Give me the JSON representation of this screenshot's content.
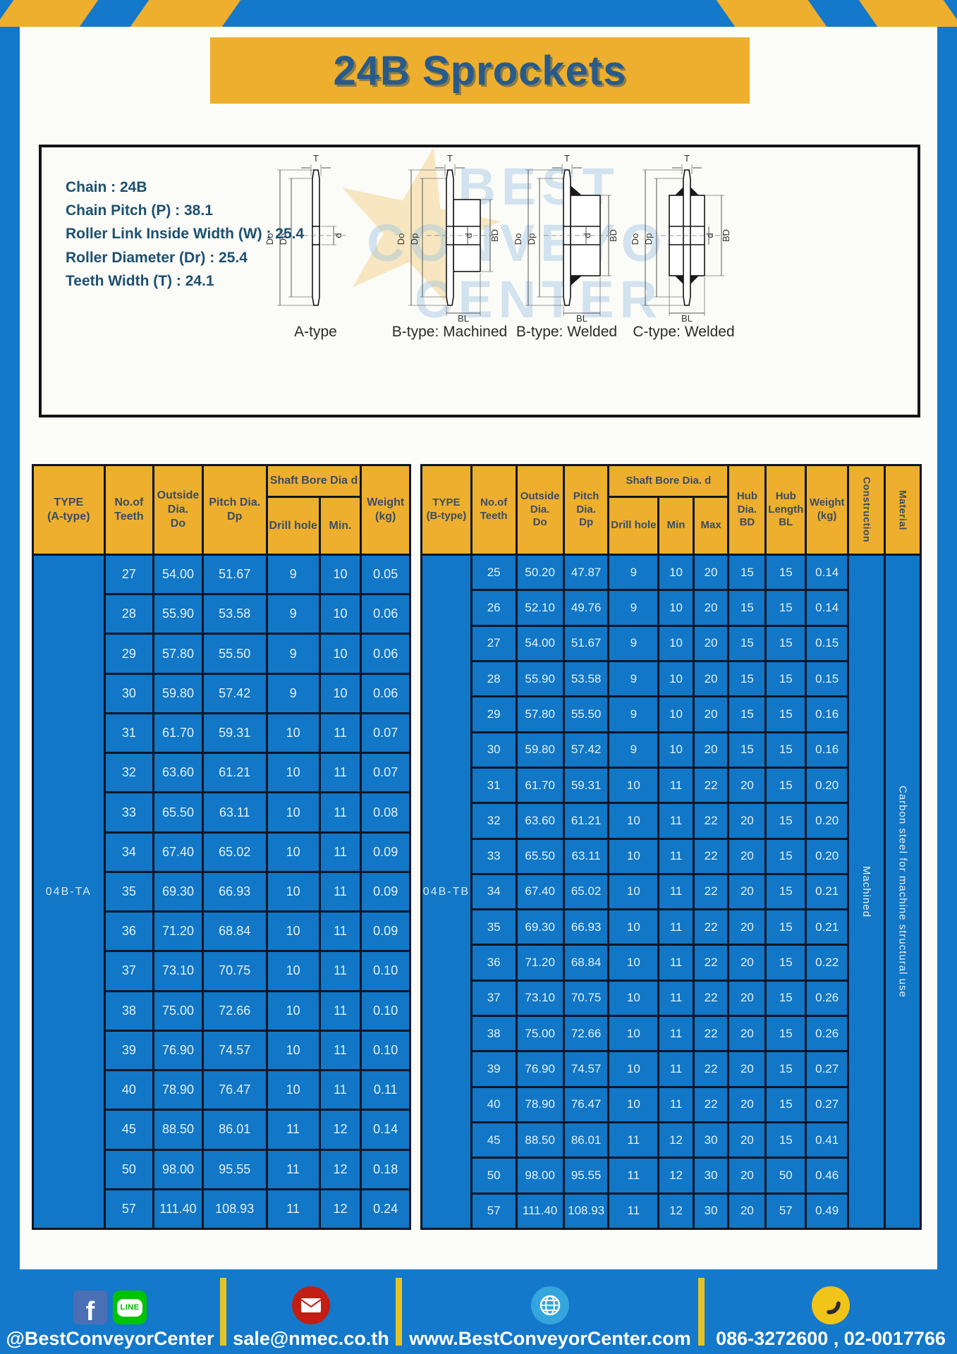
{
  "page": {
    "title": "24B Sprockets"
  },
  "colors": {
    "frame_blue": "#1478CB",
    "gold": "#EDAF2D",
    "table_body_blue": "#1177C6",
    "border_navy": "#0D1628",
    "title_navy": "#285A8C",
    "spec_text": "#1C5071"
  },
  "specs": {
    "lines": [
      "Chain  : 24B",
      "Chain Pitch (P)  :  38.1",
      "Roller Link Inside Width (W)  :  25.4",
      "Roller Diameter (Dr)  : 25.4",
      "Teeth Width (T)  :  24.1"
    ]
  },
  "diagram": {
    "labels": [
      "A-type",
      "B-type: Machined",
      "B-type: Welded",
      "C-type: Welded"
    ],
    "dims": {
      "t": "T",
      "dout": "Do",
      "dp": "Dp",
      "d": "d",
      "bd": "BD",
      "bl": "BL"
    },
    "watermark": {
      "lines": [
        "BEST",
        "CONVEYOR",
        "CENTER"
      ],
      "star": "★"
    }
  },
  "tables": {
    "left": {
      "headers": {
        "type": "TYPE\n(A-type)",
        "teeth": "No.of\nTeeth",
        "outside": "Outside\nDia.\nDo",
        "pitch": "Pitch Dia.\nDp",
        "shaft_bore": "Shaft Bore Dia d",
        "drill": "Drill hole",
        "min": "Min.",
        "weight": "Weight\n(kg)"
      },
      "merged": {
        "start": [
          {
            "value": "04B-TA",
            "name": "type-cell",
            "class": "type-cell"
          }
        ],
        "end": []
      },
      "rows": [
        [
          "27",
          "54.00",
          "51.67",
          "9",
          "10",
          "0.05"
        ],
        [
          "28",
          "55.90",
          "53.58",
          "9",
          "10",
          "0.06"
        ],
        [
          "29",
          "57.80",
          "55.50",
          "9",
          "10",
          "0.06"
        ],
        [
          "30",
          "59.80",
          "57.42",
          "9",
          "10",
          "0.06"
        ],
        [
          "31",
          "61.70",
          "59.31",
          "10",
          "11",
          "0.07"
        ],
        [
          "32",
          "63.60",
          "61.21",
          "10",
          "11",
          "0.07"
        ],
        [
          "33",
          "65.50",
          "63.11",
          "10",
          "11",
          "0.08"
        ],
        [
          "34",
          "67.40",
          "65.02",
          "10",
          "11",
          "0.09"
        ],
        [
          "35",
          "69.30",
          "66.93",
          "10",
          "11",
          "0.09"
        ],
        [
          "36",
          "71.20",
          "68.84",
          "10",
          "11",
          "0.09"
        ],
        [
          "37",
          "73.10",
          "70.75",
          "10",
          "11",
          "0.10"
        ],
        [
          "38",
          "75.00",
          "72.66",
          "10",
          "11",
          "0.10"
        ],
        [
          "39",
          "76.90",
          "74.57",
          "10",
          "11",
          "0.10"
        ],
        [
          "40",
          "78.90",
          "76.47",
          "10",
          "11",
          "0.11"
        ],
        [
          "45",
          "88.50",
          "86.01",
          "11",
          "12",
          "0.14"
        ],
        [
          "50",
          "98.00",
          "95.55",
          "11",
          "12",
          "0.18"
        ],
        [
          "57",
          "111.40",
          "108.93",
          "11",
          "12",
          "0.24"
        ]
      ]
    },
    "right": {
      "headers": {
        "type": "TYPE\n(B-type)",
        "teeth": "No.of\nTeeth",
        "outside": "Outside\nDia.\nDo",
        "pitch": "Pitch\nDia.\nDp",
        "shaft_bore": "Shaft Bore Dia.  d",
        "drill": "Drill hole",
        "min": "Min",
        "max": "Max",
        "hub_dia": "Hub\nDia.\nBD",
        "hub_len": "Hub\nLength\nBL",
        "weight": "Weight\n(kg)",
        "construction": "Construction",
        "material": "Material"
      },
      "merged": {
        "start": [
          {
            "value": "04B-TB",
            "name": "type-cell",
            "class": "type-cell"
          }
        ],
        "end": [
          {
            "value": "Machined",
            "name": "construction-cell",
            "class": "vert-cell"
          },
          {
            "value": "Carbon steel for machine structural use",
            "name": "material-cell",
            "class": "vert-cell"
          }
        ]
      },
      "rows": [
        [
          "25",
          "50.20",
          "47.87",
          "9",
          "10",
          "20",
          "15",
          "15",
          "0.14"
        ],
        [
          "26",
          "52.10",
          "49.76",
          "9",
          "10",
          "20",
          "15",
          "15",
          "0.14"
        ],
        [
          "27",
          "54.00",
          "51.67",
          "9",
          "10",
          "20",
          "15",
          "15",
          "0.15"
        ],
        [
          "28",
          "55.90",
          "53.58",
          "9",
          "10",
          "20",
          "15",
          "15",
          "0.15"
        ],
        [
          "29",
          "57.80",
          "55.50",
          "9",
          "10",
          "20",
          "15",
          "15",
          "0.16"
        ],
        [
          "30",
          "59.80",
          "57.42",
          "9",
          "10",
          "20",
          "15",
          "15",
          "0.16"
        ],
        [
          "31",
          "61.70",
          "59.31",
          "10",
          "11",
          "22",
          "20",
          "15",
          "0.20"
        ],
        [
          "32",
          "63.60",
          "61.21",
          "10",
          "11",
          "22",
          "20",
          "15",
          "0.20"
        ],
        [
          "33",
          "65.50",
          "63.11",
          "10",
          "11",
          "22",
          "20",
          "15",
          "0.20"
        ],
        [
          "34",
          "67.40",
          "65.02",
          "10",
          "11",
          "22",
          "20",
          "15",
          "0.21"
        ],
        [
          "35",
          "69.30",
          "66.93",
          "10",
          "11",
          "22",
          "20",
          "15",
          "0.21"
        ],
        [
          "36",
          "71.20",
          "68.84",
          "10",
          "11",
          "22",
          "20",
          "15",
          "0.22"
        ],
        [
          "37",
          "73.10",
          "70.75",
          "10",
          "11",
          "22",
          "20",
          "15",
          "0.26"
        ],
        [
          "38",
          "75.00",
          "72.66",
          "10",
          "11",
          "22",
          "20",
          "15",
          "0.26"
        ],
        [
          "39",
          "76.90",
          "74.57",
          "10",
          "11",
          "22",
          "20",
          "15",
          "0.27"
        ],
        [
          "40",
          "78.90",
          "76.47",
          "10",
          "11",
          "22",
          "20",
          "15",
          "0.27"
        ],
        [
          "45",
          "88.50",
          "86.01",
          "11",
          "12",
          "30",
          "20",
          "15",
          "0.41"
        ],
        [
          "50",
          "98.00",
          "95.55",
          "11",
          "12",
          "30",
          "20",
          "50",
          "0.46"
        ],
        [
          "57",
          "111.40",
          "108.93",
          "11",
          "12",
          "30",
          "20",
          "57",
          "0.49"
        ]
      ]
    }
  },
  "footer": {
    "social": "@BestConveyorCenter",
    "email": "sale@nmec.co.th",
    "website": "www.BestConveyorCenter.com",
    "phones": "086-3272600 , 02-0017766",
    "facebook_glyph": "f",
    "line_label": "LINE"
  }
}
